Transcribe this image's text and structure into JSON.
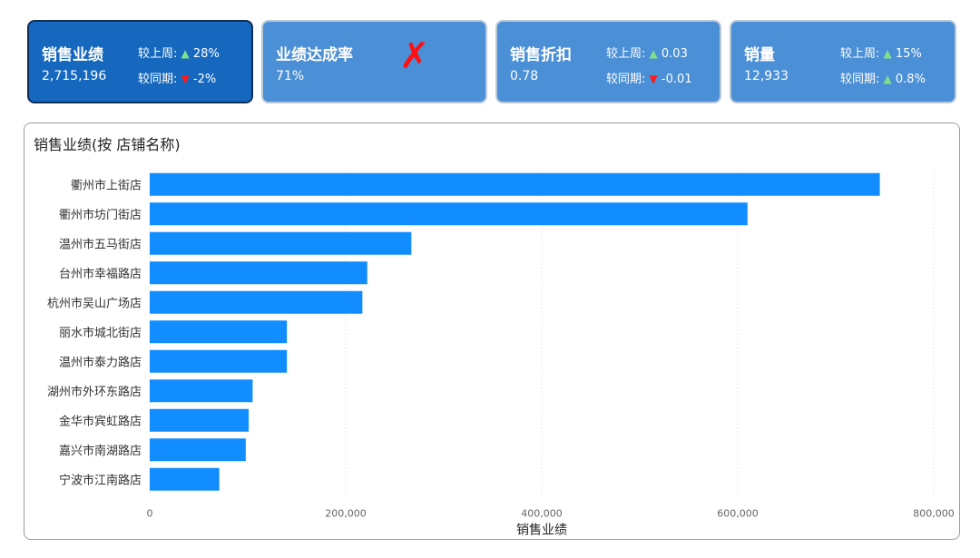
{
  "kpis": [
    {
      "title": "销售业绩",
      "value": "2,715,196",
      "r1_label": "较上周:",
      "r1_dir": "up",
      "r1_value": "28%",
      "r2_label": "较同期:",
      "r2_dir": "down",
      "r2_value": "-2%"
    },
    {
      "title": "业绩达成率",
      "value": "71%",
      "mark": "✗"
    },
    {
      "title": "销售折扣",
      "value": "0.78",
      "r1_label": "较上周:",
      "r1_dir": "up",
      "r1_value": "0.03",
      "r2_label": "较同期:",
      "r2_dir": "down",
      "r2_value": "-0.01"
    },
    {
      "title": "销量",
      "value": "12,933",
      "r1_label": "较上周:",
      "r1_dir": "up",
      "r1_value": "15%",
      "r2_label": "较同期:",
      "r2_dir": "up",
      "r2_value": "0.8%"
    }
  ],
  "chart_data": {
    "type": "bar",
    "orientation": "horizontal",
    "title": "销售业绩(按 店铺名称)",
    "categories": [
      "衢州市上街店",
      "衢州市坊门街店",
      "温州市五马街店",
      "台州市幸福路店",
      "杭州市吴山广场店",
      "丽水市城北街店",
      "温州市泰力路店",
      "湖州市外环东路店",
      "金华市宾虹路店",
      "嘉兴市南湖路店",
      "宁波市江南路店"
    ],
    "values": [
      745000,
      610000,
      267000,
      222000,
      217000,
      140000,
      140000,
      105000,
      101000,
      98000,
      71000
    ],
    "xlabel": "销售业绩",
    "xlim": [
      0,
      800000
    ],
    "xticks": [
      0,
      200000,
      400000,
      600000,
      800000
    ],
    "xtick_labels": [
      "0",
      "200,000",
      "400,000",
      "600,000",
      "800,000"
    ],
    "bar_color": "#118dff",
    "grid": "vertical dotted"
  },
  "colors": {
    "kpi_active": "#1668bf",
    "kpi": "#4b8fd6",
    "up": "#7de38b",
    "down": "#ff1a1a"
  }
}
